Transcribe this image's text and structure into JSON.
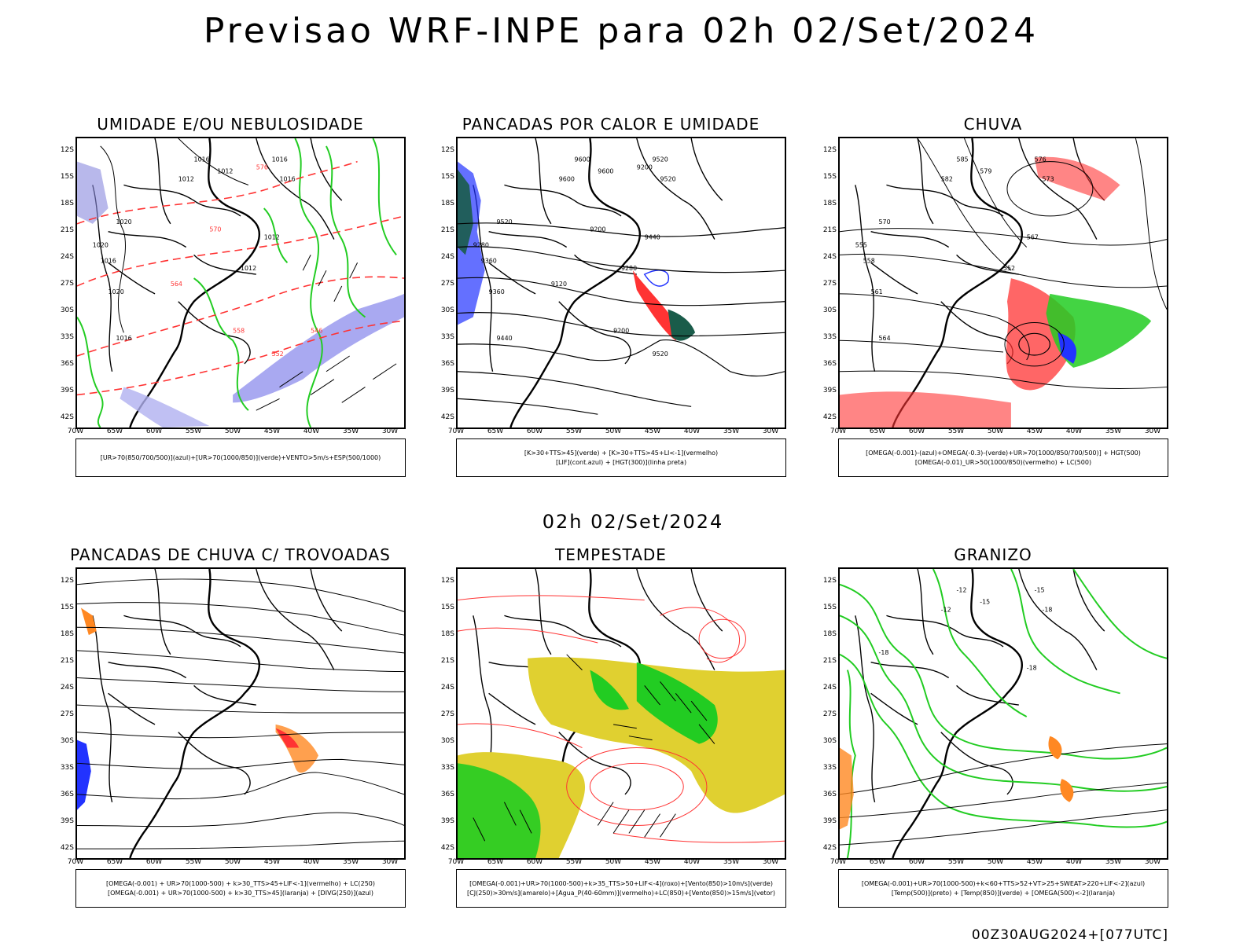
{
  "header": {
    "title": "Previsao WRF-INPE  para 02h 02/Set/2024",
    "subtitle": "02h 02/Set/2024",
    "footer": "00Z30AUG2024+[077UTC]"
  },
  "axes": {
    "lat_ticks": [
      "12S",
      "15S",
      "18S",
      "21S",
      "24S",
      "27S",
      "30S",
      "33S",
      "36S",
      "39S",
      "42S"
    ],
    "lon_ticks": [
      "70W",
      "65W",
      "60W",
      "55W",
      "50W",
      "45W",
      "40W",
      "35W",
      "30W"
    ]
  },
  "panels": [
    {
      "id": "umidade",
      "title": "UMIDADE E/OU NEBULOSIDADE",
      "legend": [
        "[UR>70(850/700/500)](azul)+[UR>70(1000/850)](verde)+VENTO>5m/s+ESP(500/1000)"
      ],
      "labels": [
        "1016",
        "1012",
        "1012",
        "1016",
        "1016",
        "1020",
        "1012",
        "1016",
        "1020",
        "1016",
        "1020",
        "1012",
        "576",
        "570",
        "564",
        "558",
        "552",
        "546"
      ],
      "fill_colors": [
        "#22cc22",
        "#ff3333",
        "#8888ee"
      ]
    },
    {
      "id": "pancadas-calor",
      "title": "PANCADAS POR CALOR E UMIDADE",
      "legend": [
        "[K>30+TTS>45](verde) + [K>30+TTS>45+LI<-1](vermelho)",
        "[LIF](cont.azul) + [HGT(300)](linha preta)"
      ],
      "labels": [
        "9600",
        "9600",
        "9600",
        "9520",
        "9520",
        "9520",
        "9440",
        "9440",
        "9360",
        "9360",
        "9280",
        "9280",
        "9200",
        "9200",
        "9120",
        "9200",
        "9520"
      ],
      "fill_colors": [
        "#1a5c4a",
        "#ff3333",
        "#3344ff"
      ]
    },
    {
      "id": "chuva",
      "title": "CHUVA",
      "legend": [
        "[OMEGA(-0.001)-(azul)+OMEGA(-0.3)-(verde)+UR>70(1000/850/700/500)] + HGT(500)",
        "[OMEGA(-0.01)_UR>50(1000/850)(vermelho) + LC(500)"
      ],
      "labels": [
        "585",
        "582",
        "579",
        "576",
        "573",
        "570",
        "567",
        "564",
        "561",
        "558",
        "555",
        "552"
      ],
      "fill_colors": [
        "#ff3333",
        "#22cc22",
        "#2233ff"
      ]
    },
    {
      "id": "pancadas-trovoadas",
      "title": "PANCADAS DE CHUVA C/ TROVOADAS",
      "legend": [
        "[OMEGA(-0.001) + UR>70(1000-500) + k>30_TTS>45+LIF<-1](vermelho) + LC(250)",
        "[OMEGA(-0.001) + UR>70(1000-500) + k>30_TTS>45](laranja) + [DIVG(250)](azul)"
      ],
      "labels": [],
      "fill_colors": [
        "#ff3333",
        "#ff8822",
        "#2233ff"
      ]
    },
    {
      "id": "tempestade",
      "title": "TEMPESTADE",
      "legend": [
        "[OMEGA(-0.001)+UR>70(1000-500)+k>35_TTS>50+LIF<-4](roxo)+[Vento(850)>10m/s](verde)",
        "[CJ(250)>30m/s](amarelo)+[Agua_P(40-60mm)](vermelho)+LC(850)+[Vento(850)>15m/s](vetor)"
      ],
      "labels": [],
      "fill_colors": [
        "#e0d030",
        "#22cc22",
        "#ff3333"
      ]
    },
    {
      "id": "granizo",
      "title": "GRANIZO",
      "legend": [
        "[OMEGA(-0.001)+UR>70(1000-500)+k<60+TTS>52+VT>25+SWEAT>220+LIF<-2](azul)",
        "[Temp(500)](preto) + [Temp(850)](verde) + [OMEGA(500)<-2](laranja)"
      ],
      "labels": [
        "-12",
        "-12",
        "-15",
        "-15",
        "-18",
        "-18",
        "-18"
      ],
      "fill_colors": [
        "#22cc22",
        "#ff8822"
      ]
    }
  ]
}
